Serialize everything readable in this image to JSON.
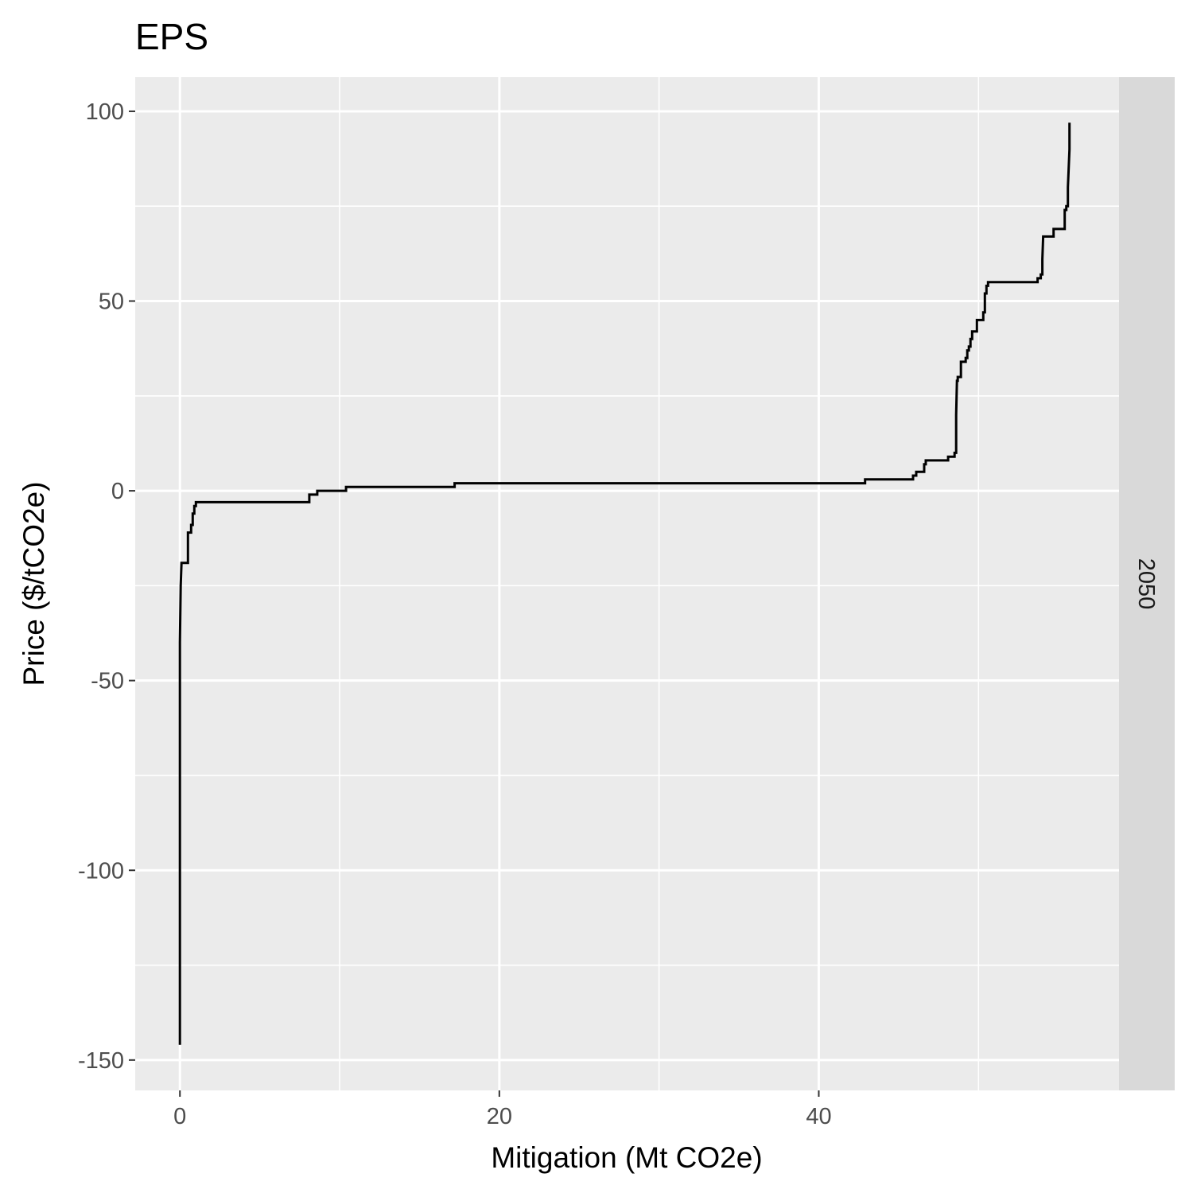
{
  "chart_data": {
    "type": "line",
    "title": "EPS",
    "xlabel": "Mitigation (Mt CO2e)",
    "ylabel": "Price ($/tCO2e)",
    "facet_label": "2050",
    "xlim": [
      -2.8,
      58.8
    ],
    "ylim": [
      -158,
      109
    ],
    "x_ticks": [
      0,
      20,
      40
    ],
    "x_tick_labels": [
      "0",
      "20",
      "40"
    ],
    "x_minor_gridlines": [
      10,
      30,
      50
    ],
    "y_ticks": [
      100,
      50,
      0,
      -50,
      -100,
      -150
    ],
    "y_tick_labels": [
      "100",
      "50",
      "0",
      "-50",
      "-100",
      "-150"
    ],
    "y_minor_gridlines": [
      75,
      25,
      -25,
      -75,
      -125
    ],
    "grid": true,
    "legend": "none",
    "colors": {
      "panel_background": "#ebebeb",
      "grid": "#ffffff",
      "strip_background": "#d9d9d9",
      "line": "#000000"
    },
    "series": [
      {
        "points": [
          [
            0,
            -146
          ],
          [
            0,
            -130
          ],
          [
            0,
            -80
          ],
          [
            0,
            -40
          ],
          [
            0.05,
            -25
          ],
          [
            0.1,
            -19
          ],
          [
            0.5,
            -19
          ],
          [
            0.5,
            -11
          ],
          [
            0.7,
            -11
          ],
          [
            0.7,
            -9
          ],
          [
            0.8,
            -9
          ],
          [
            0.8,
            -6
          ],
          [
            0.9,
            -6
          ],
          [
            0.9,
            -4
          ],
          [
            1.0,
            -4
          ],
          [
            1.0,
            -3
          ],
          [
            8.1,
            -3
          ],
          [
            8.1,
            -1
          ],
          [
            8.6,
            -1
          ],
          [
            8.6,
            0
          ],
          [
            10.4,
            0
          ],
          [
            10.4,
            1
          ],
          [
            17.2,
            1
          ],
          [
            17.2,
            2
          ],
          [
            42.9,
            2
          ],
          [
            42.9,
            3
          ],
          [
            45.9,
            3
          ],
          [
            45.9,
            4
          ],
          [
            46.1,
            4
          ],
          [
            46.1,
            5
          ],
          [
            46.6,
            5
          ],
          [
            46.6,
            7
          ],
          [
            46.7,
            7
          ],
          [
            46.7,
            8
          ],
          [
            48.1,
            8
          ],
          [
            48.1,
            9
          ],
          [
            48.5,
            9
          ],
          [
            48.5,
            10
          ],
          [
            48.6,
            10
          ],
          [
            48.6,
            20
          ],
          [
            48.65,
            29
          ],
          [
            48.7,
            29
          ],
          [
            48.7,
            30
          ],
          [
            48.9,
            30
          ],
          [
            48.9,
            34
          ],
          [
            49.2,
            34
          ],
          [
            49.2,
            35
          ],
          [
            49.3,
            35
          ],
          [
            49.3,
            37
          ],
          [
            49.4,
            37
          ],
          [
            49.4,
            38
          ],
          [
            49.5,
            38
          ],
          [
            49.5,
            40
          ],
          [
            49.6,
            40
          ],
          [
            49.6,
            42
          ],
          [
            49.9,
            42
          ],
          [
            49.9,
            45
          ],
          [
            50.3,
            45
          ],
          [
            50.3,
            47
          ],
          [
            50.4,
            47
          ],
          [
            50.4,
            52
          ],
          [
            50.5,
            52
          ],
          [
            50.5,
            54
          ],
          [
            50.6,
            54
          ],
          [
            50.6,
            55
          ],
          [
            53.7,
            55
          ],
          [
            53.7,
            56
          ],
          [
            53.9,
            56
          ],
          [
            53.9,
            57
          ],
          [
            54.0,
            57
          ],
          [
            54.0,
            61
          ],
          [
            54.05,
            67
          ],
          [
            54.7,
            67
          ],
          [
            54.7,
            69
          ],
          [
            55.4,
            69
          ],
          [
            55.4,
            74
          ],
          [
            55.5,
            74
          ],
          [
            55.5,
            75
          ],
          [
            55.6,
            75
          ],
          [
            55.6,
            80
          ],
          [
            55.7,
            90
          ],
          [
            55.7,
            97
          ]
        ]
      }
    ]
  }
}
